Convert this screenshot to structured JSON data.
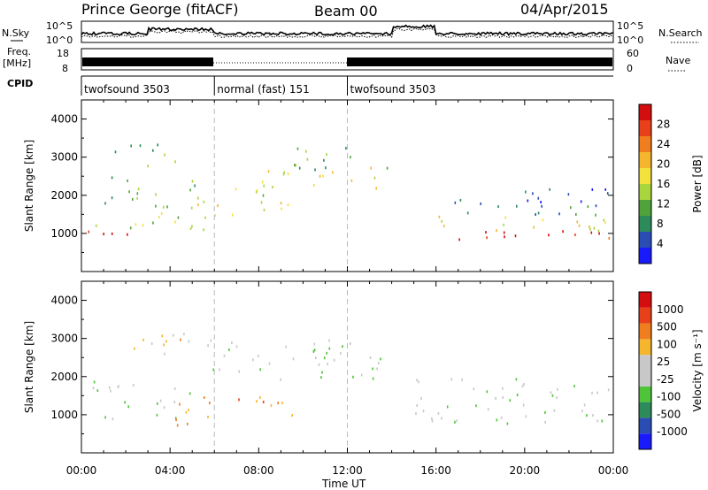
{
  "header": {
    "station": "Prince George (fitACF)",
    "beam": "Beam 00",
    "date": "04/Apr/2015"
  },
  "panels": {
    "nsky_label": "N.Sky",
    "nsearch_label": "N.Search",
    "freq_label_line1": "Freq.",
    "freq_label_line2": "[MHz]",
    "nave_label": "Nave",
    "cpid_label": "CPID",
    "nsky_ticks": [
      "10^5",
      "10^0"
    ],
    "nsearch_ticks": [
      "10^5",
      "10^0"
    ],
    "freq_ticks": [
      "18",
      "8"
    ],
    "nave_ticks": [
      "60",
      "0"
    ]
  },
  "cpid_segments": [
    {
      "label": "twofsound 3503",
      "start": 0,
      "end": 6
    },
    {
      "label": "normal (fast) 151",
      "start": 6,
      "end": 12
    },
    {
      "label": "twofsound 3503",
      "start": 12,
      "end": 24
    }
  ],
  "colors": {
    "power_scale": [
      "#1a1aff",
      "#2a4db3",
      "#2d8a5a",
      "#4fa33a",
      "#a8d63c",
      "#f3e13c",
      "#f5b52d",
      "#f07d1e",
      "#e8401a",
      "#d40e0e"
    ],
    "velocity_scale": [
      "#1a1aff",
      "#2a4db3",
      "#2d8a5a",
      "#4fc43a",
      "#c8c8c8",
      "#c8c8c8",
      "#f5b52d",
      "#f07d1e",
      "#e8401a",
      "#d40e0e"
    ]
  },
  "chart_data": [
    {
      "type": "heatmap",
      "panel": "power",
      "xlabel": "Time UT",
      "ylabel": "Slant Range [km]",
      "xlim": [
        0,
        24
      ],
      "ylim": [
        0,
        4500
      ],
      "x_ticks": [
        "00:00",
        "04:00",
        "08:00",
        "12:00",
        "16:00",
        "20:00",
        "00:00"
      ],
      "y_ticks": [
        1000,
        2000,
        3000,
        4000
      ],
      "colorbar_label": "Power [dB]",
      "colorbar_ticks": [
        4,
        8,
        12,
        16,
        20,
        24,
        28
      ],
      "bands": [
        {
          "t0": 0.3,
          "t1": 3.5,
          "r0": 800,
          "r1": 1100,
          "level": 9
        },
        {
          "t0": 0.3,
          "t1": 6.0,
          "r0": 1100,
          "r1": 1600,
          "level": 4
        },
        {
          "t0": 1.0,
          "t1": 5.5,
          "r0": 1600,
          "r1": 2500,
          "level": 3
        },
        {
          "t0": 1.5,
          "t1": 4.5,
          "r0": 2800,
          "r1": 3400,
          "level": 3
        },
        {
          "t0": 5.0,
          "t1": 9.5,
          "r0": 1400,
          "r1": 1900,
          "level": 5
        },
        {
          "t0": 6.0,
          "t1": 9.0,
          "r0": 1900,
          "r1": 2200,
          "level": 4
        },
        {
          "t0": 8.0,
          "t1": 13.5,
          "r0": 2200,
          "r1": 2800,
          "level": 5
        },
        {
          "t0": 9.0,
          "t1": 13.8,
          "r0": 2700,
          "r1": 3300,
          "level": 3
        },
        {
          "t0": 15.2,
          "t1": 24,
          "r0": 800,
          "r1": 1100,
          "level": 8
        },
        {
          "t0": 15.2,
          "t1": 24,
          "r0": 1100,
          "r1": 1500,
          "level": 5
        },
        {
          "t0": 15.2,
          "t1": 24,
          "r0": 1500,
          "r1": 1800,
          "level": 2
        },
        {
          "t0": 16.5,
          "t1": 24,
          "r0": 1800,
          "r1": 2200,
          "level": 1
        }
      ]
    },
    {
      "type": "heatmap",
      "panel": "velocity",
      "xlabel": "Time UT",
      "ylabel": "Slant Range [km]",
      "xlim": [
        0,
        24
      ],
      "ylim": [
        0,
        4500
      ],
      "x_ticks": [
        "00:00",
        "04:00",
        "08:00",
        "12:00",
        "16:00",
        "20:00",
        "00:00"
      ],
      "y_ticks": [
        1000,
        2000,
        3000,
        4000
      ],
      "colorbar_label": "Velocity [m s⁻¹]",
      "colorbar_ticks": [
        "1000",
        "500",
        "100",
        "25",
        "-25",
        "-100",
        "-500",
        "-1000"
      ],
      "bands": [
        {
          "t0": 0.5,
          "t1": 5.0,
          "r0": 900,
          "r1": 1900,
          "level": 4
        },
        {
          "t0": 2.0,
          "t1": 5.0,
          "r0": 2500,
          "r1": 3300,
          "level": 6
        },
        {
          "t0": 4.0,
          "t1": 6.0,
          "r0": 700,
          "r1": 1700,
          "level": 7
        },
        {
          "t0": 6.0,
          "t1": 9.5,
          "r0": 1000,
          "r1": 1500,
          "level": 7
        },
        {
          "t0": 5.5,
          "t1": 13.5,
          "r0": 1900,
          "r1": 3000,
          "level": 4
        },
        {
          "t0": 15.0,
          "t1": 24,
          "r0": 800,
          "r1": 2000,
          "level": 4
        }
      ]
    }
  ]
}
